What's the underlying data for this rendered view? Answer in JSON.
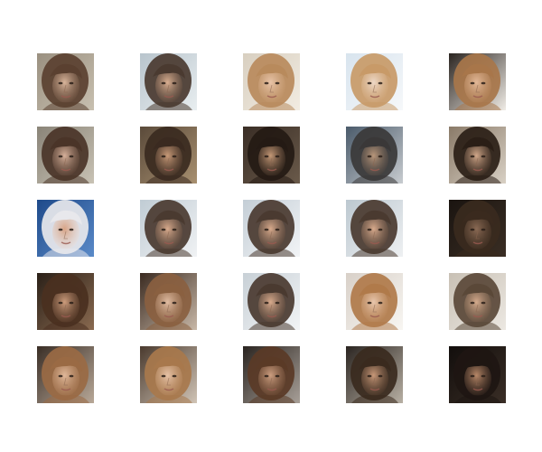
{
  "grid": {
    "rows": 5,
    "columns": 5,
    "cells": [
      {
        "hair": "#5a4030",
        "skin": "#d8b49a",
        "bg": "#9a9080",
        "bg2": "#c8c0b0"
      },
      {
        "hair": "#4a3a30",
        "skin": "#d9ae90",
        "bg": "#b8c4cc",
        "bg2": "#e8eef0"
      },
      {
        "hair": "#b88a5c",
        "skin": "#e8c4a8",
        "bg": "#d8cfc0",
        "bg2": "#f2ece2"
      },
      {
        "hair": "#c89a68",
        "skin": "#eed8c6",
        "bg": "#d8e4ee",
        "bg2": "#f6f8fa"
      },
      {
        "hair": "#a8764a",
        "skin": "#e2b898",
        "bg": "#2a2420",
        "bg2": "#f0ece6"
      },
      {
        "hair": "#4a3428",
        "skin": "#d6b09a",
        "bg": "#8a8478",
        "bg2": "#c8c2b4"
      },
      {
        "hair": "#3a2a20",
        "skin": "#c89a78",
        "bg": "#5a4a3a",
        "bg2": "#a89070"
      },
      {
        "hair": "#241a14",
        "skin": "#c49876",
        "bg": "#3a2e26",
        "bg2": "#6a5a4a"
      },
      {
        "hair": "#3a3838",
        "skin": "#b8967a",
        "bg": "#4a5a6a",
        "bg2": "#c8ccd0"
      },
      {
        "hair": "#2a1e16",
        "skin": "#d2a88a",
        "bg": "#8a7a68",
        "bg2": "#d8d0c4"
      },
      {
        "hair": "#e8e8ec",
        "skin": "#d8a486",
        "bg": "#1e4a8a",
        "bg2": "#5a8ac8"
      },
      {
        "hair": "#4a3a30",
        "skin": "#d8aa8c",
        "bg": "#c0ccd4",
        "bg2": "#f0f2f4"
      },
      {
        "hair": "#4a3a30",
        "skin": "#d8aa8c",
        "bg": "#c4ced6",
        "bg2": "#f2f4f6"
      },
      {
        "hair": "#4a3a30",
        "skin": "#d8aa8c",
        "bg": "#bcc8d0",
        "bg2": "#eef0f2"
      },
      {
        "hair": "#3a2a1e",
        "skin": "#8a6a54",
        "bg": "#1a1410",
        "bg2": "#3a2e24"
      },
      {
        "hair": "#4a3020",
        "skin": "#cc9c7c",
        "bg": "#2a2018",
        "bg2": "#8a6a50"
      },
      {
        "hair": "#8a6040",
        "skin": "#e0bca2",
        "bg": "#3a2a20",
        "bg2": "#c8b8a8"
      },
      {
        "hair": "#4a3a30",
        "skin": "#d8aa8c",
        "bg": "#c8d0d6",
        "bg2": "#f2f4f6"
      },
      {
        "hair": "#b07a4a",
        "skin": "#e8c6ac",
        "bg": "#d8d0c8",
        "bg2": "#f8f6f2"
      },
      {
        "hair": "#5a4838",
        "skin": "#d4aa8c",
        "bg": "#c8c0b4",
        "bg2": "#ece8e2"
      },
      {
        "hair": "#9a6a44",
        "skin": "#e0b89a",
        "bg": "#3a2e26",
        "bg2": "#b8a898"
      },
      {
        "hair": "#a8784c",
        "skin": "#e6c2a6",
        "bg": "#4a3a2e",
        "bg2": "#d0c4b6"
      },
      {
        "hair": "#5a3a26",
        "skin": "#cc9e80",
        "bg": "#2a2420",
        "bg2": "#a8a098"
      },
      {
        "hair": "#3a2a1e",
        "skin": "#c89878",
        "bg": "#2a2420",
        "bg2": "#b8b0a4"
      },
      {
        "hair": "#1e1612",
        "skin": "#b88868",
        "bg": "#120e0c",
        "bg2": "#3a2e26"
      }
    ]
  }
}
